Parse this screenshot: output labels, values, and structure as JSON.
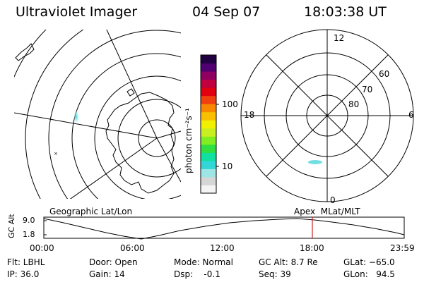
{
  "header": {
    "instrument": "Ultraviolet Imager",
    "date": "04 Sep 07",
    "time": "18:03:38 UT"
  },
  "colorbar": {
    "unit_label": "photon cm⁻²s⁻¹",
    "ticks": [
      "100",
      "10"
    ],
    "scale": "log",
    "colors": [
      "#f4f4f4",
      "#d6d6d6",
      "#9ee6e6",
      "#33d6d6",
      "#10e0a0",
      "#30e040",
      "#80ee20",
      "#c8f020",
      "#f0f000",
      "#f8c000",
      "#f88800",
      "#f04010",
      "#e00010",
      "#c00040",
      "#900060",
      "#500070",
      "#200040"
    ]
  },
  "left_map": {
    "title": "Geographic Lat/Lon"
  },
  "right_map": {
    "title": "Apex  MLat/MLT",
    "mlt_labels": [
      "12",
      "18",
      "6",
      "0"
    ],
    "mlat_labels": [
      "60",
      "70",
      "80"
    ]
  },
  "timeline": {
    "axis_label": "GC Alt",
    "y_ticks": [
      "9.0",
      "1.8"
    ],
    "x_ticks": [
      "00:00",
      "06:00",
      "12:00",
      "18:00",
      "23:59"
    ],
    "marker_color": "#cc2222"
  },
  "status": {
    "flt": "Flt: LBHL",
    "ip": "IP: 36.0",
    "door": "Door: Open",
    "gain": "Gain: 14",
    "mode": "Mode: Normal",
    "dsp": "Dsp:    -0.1",
    "gcalt": "GC Alt: 8.7 Re",
    "seq": "Seq: 39",
    "glat": "GLat: −65.0",
    "glon": "GLon:   94.5"
  }
}
